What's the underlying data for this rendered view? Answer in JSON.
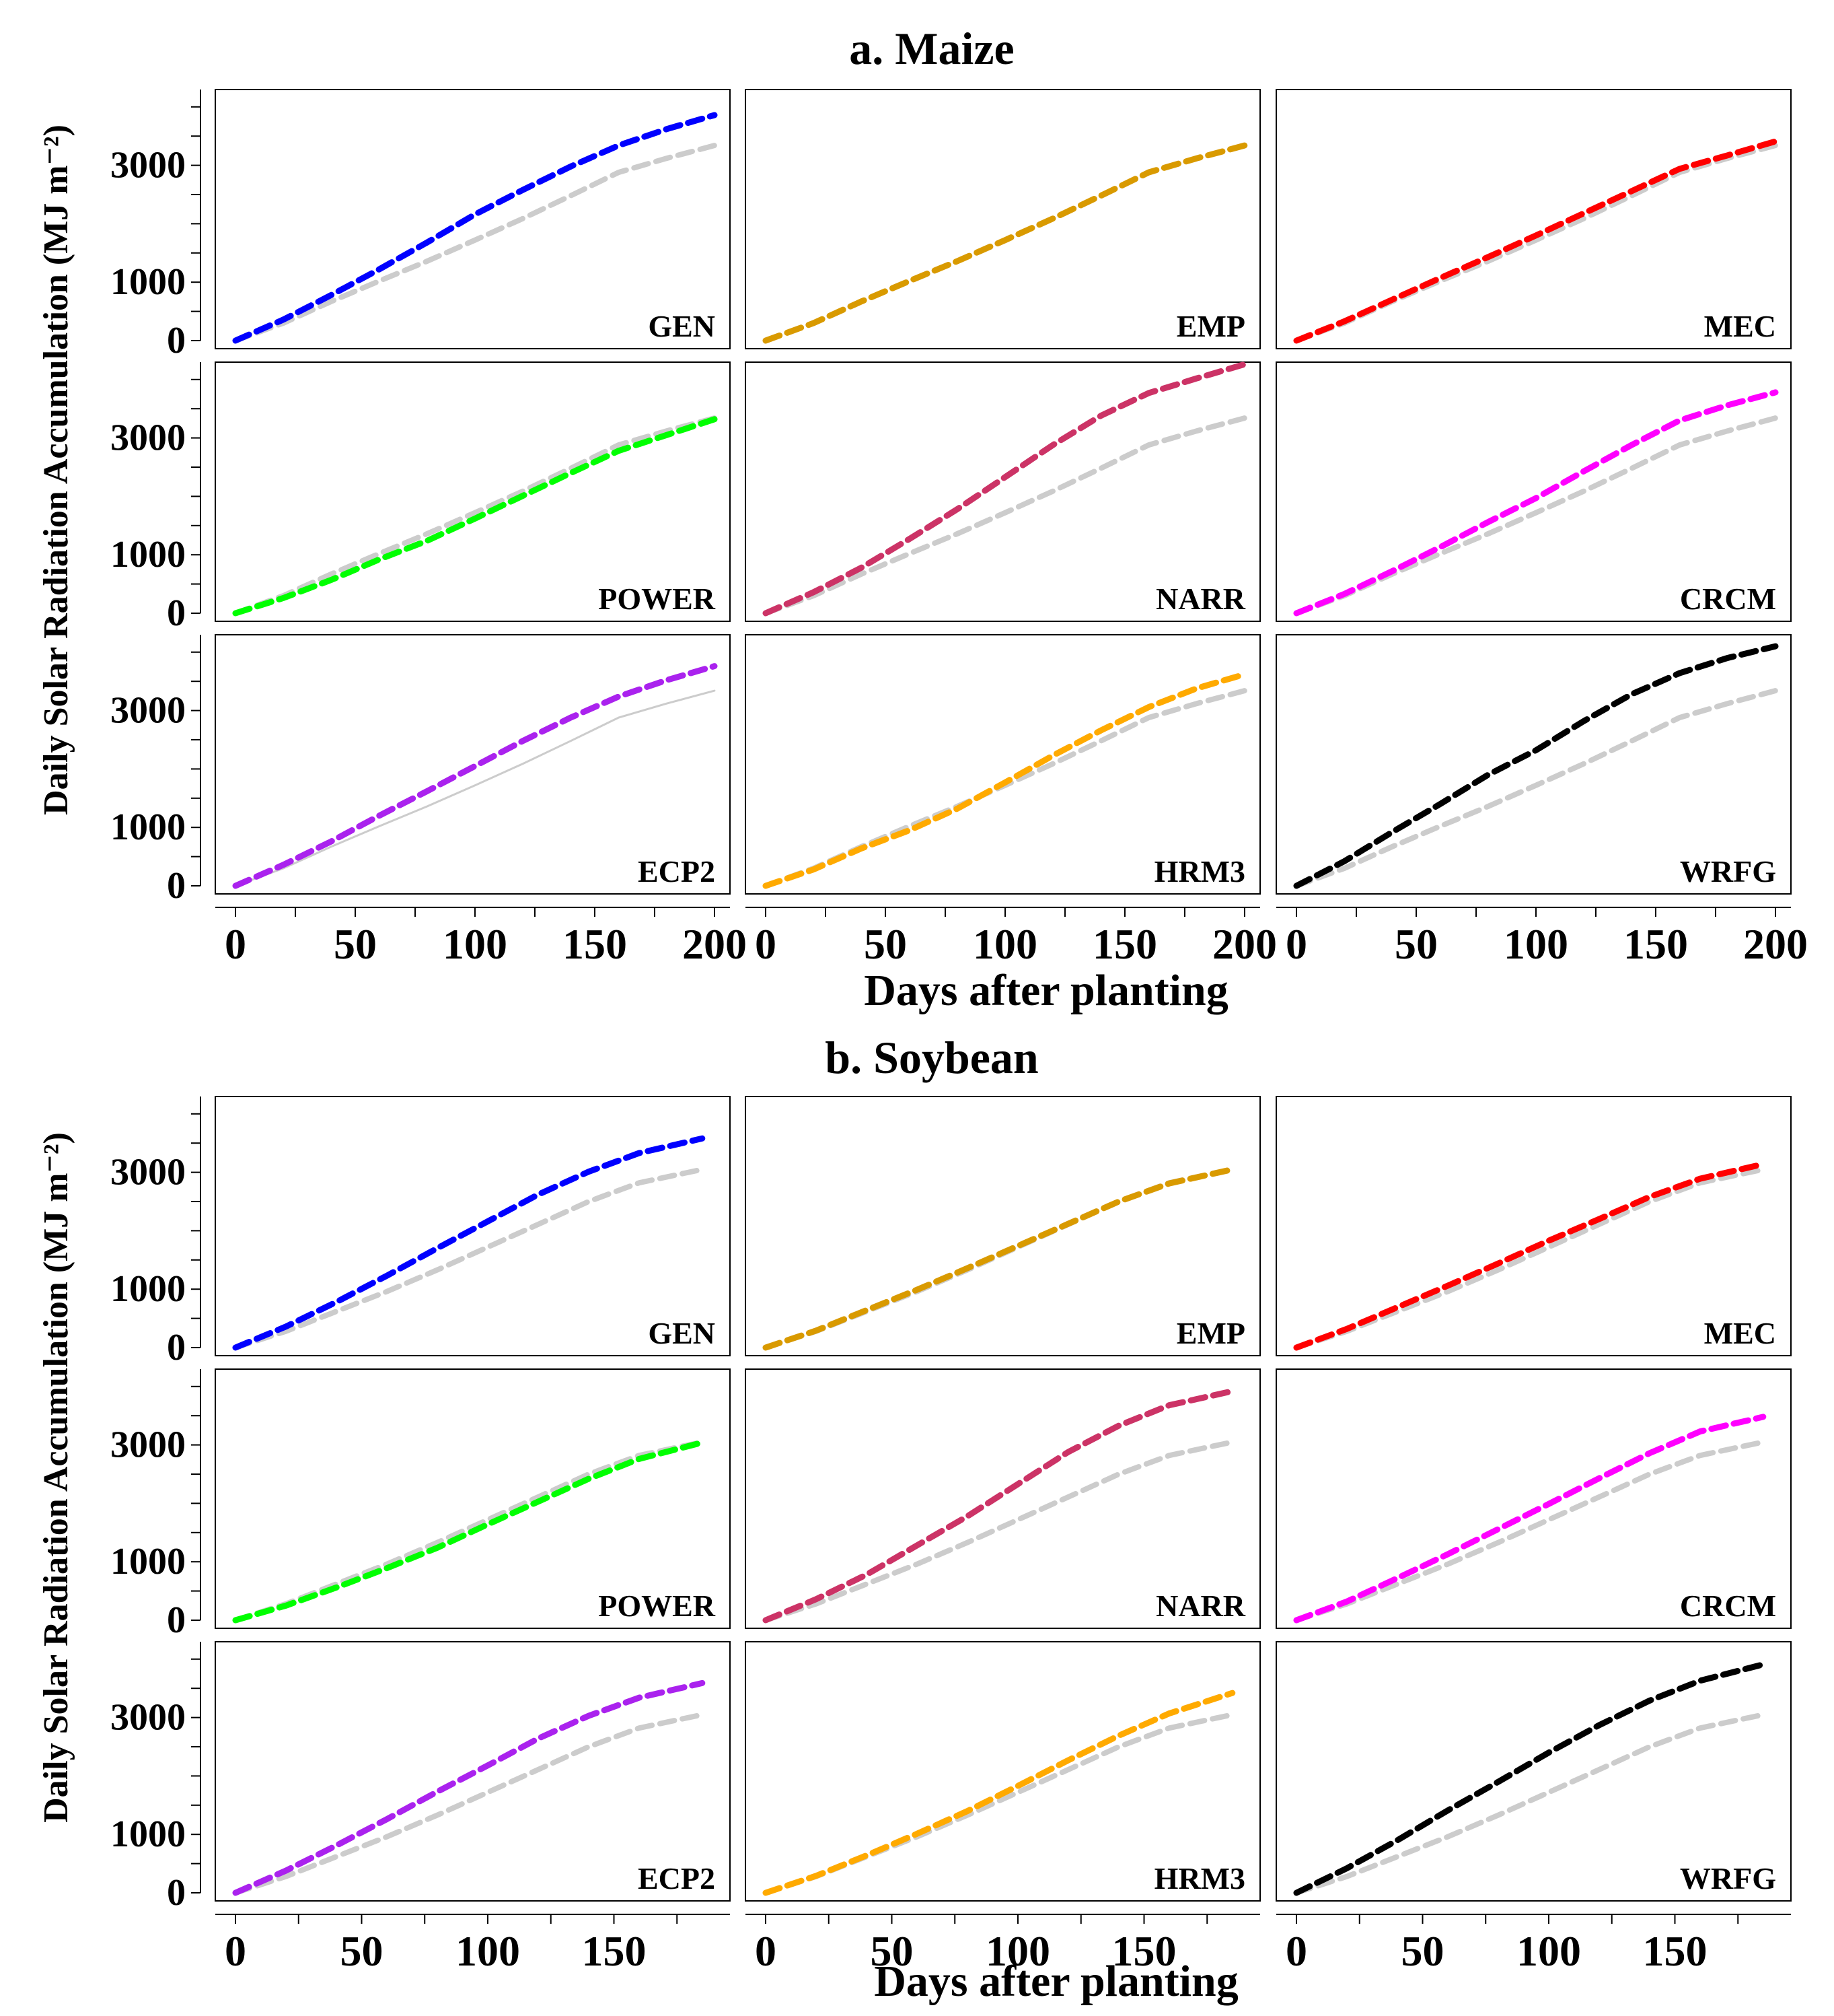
{
  "chart_data": [
    {
      "type": "line",
      "title": "a. Maize",
      "xlabel": "Days after planting",
      "ylabel": "Daily Solar Radiation Accumulation  (MJ m⁻²)",
      "xlim": [
        0,
        200
      ],
      "ylim": [
        0,
        4000
      ],
      "xticks": [
        "0",
        "50",
        "100",
        "150",
        "200"
      ],
      "yticks": [
        "0",
        "1000",
        "3000"
      ],
      "grid": false,
      "reference_series": {
        "name": "",
        "color": "#cccccc",
        "x": [
          0,
          20,
          40,
          60,
          80,
          100,
          120,
          140,
          160,
          180,
          200
        ],
        "values": [
          0,
          300,
          670,
          1020,
          1360,
          1720,
          2090,
          2480,
          2880,
          3120,
          3340
        ]
      },
      "panels": [
        {
          "label": "GEN",
          "color": "#0000ff",
          "x": [
            0,
            20,
            40,
            60,
            80,
            100,
            120,
            140,
            160,
            180,
            200
          ],
          "values": [
            0,
            360,
            780,
            1220,
            1680,
            2160,
            2580,
            2980,
            3340,
            3620,
            3860
          ]
        },
        {
          "label": "EMP",
          "color": "#d99a00",
          "x": [
            0,
            20,
            40,
            60,
            80,
            100,
            120,
            140,
            160,
            180,
            200
          ],
          "values": [
            0,
            300,
            670,
            1020,
            1360,
            1720,
            2090,
            2480,
            2880,
            3120,
            3340
          ]
        },
        {
          "label": "MEC",
          "color": "#ff0000",
          "x": [
            0,
            20,
            40,
            60,
            80,
            100,
            120,
            140,
            160,
            180,
            200
          ],
          "values": [
            0,
            330,
            700,
            1070,
            1430,
            1800,
            2180,
            2560,
            2940,
            3170,
            3410
          ]
        },
        {
          "label": "POWER",
          "color": "#00ff00",
          "x": [
            0,
            20,
            40,
            60,
            80,
            100,
            120,
            140,
            160,
            180,
            200
          ],
          "values": [
            0,
            260,
            570,
            920,
            1240,
            1620,
            2010,
            2400,
            2780,
            3050,
            3320
          ]
        },
        {
          "label": "NARR",
          "color": "#cc3366",
          "x": [
            0,
            20,
            40,
            60,
            80,
            100,
            120,
            140,
            160,
            180,
            200
          ],
          "values": [
            0,
            360,
            780,
            1270,
            1780,
            2330,
            2880,
            3380,
            3770,
            4020,
            4260
          ]
        },
        {
          "label": "CRCM",
          "color": "#ff00ff",
          "x": [
            0,
            20,
            40,
            60,
            80,
            100,
            120,
            140,
            160,
            180,
            200
          ],
          "values": [
            0,
            330,
            720,
            1130,
            1560,
            1970,
            2430,
            2880,
            3300,
            3560,
            3780
          ]
        },
        {
          "label": "ECP2",
          "color": "#aa22ee",
          "x": [
            0,
            20,
            40,
            60,
            80,
            100,
            120,
            140,
            160,
            180,
            200
          ],
          "values": [
            0,
            360,
            760,
            1200,
            1620,
            2050,
            2480,
            2880,
            3240,
            3520,
            3760
          ]
        },
        {
          "label": "HRM3",
          "color": "#ffaa00",
          "x": [
            0,
            20,
            40,
            60,
            80,
            100,
            120,
            140,
            160,
            180,
            200
          ],
          "values": [
            0,
            280,
            640,
            950,
            1320,
            1770,
            2230,
            2660,
            3060,
            3380,
            3620
          ]
        },
        {
          "label": "WRFG",
          "color": "#000000",
          "x": [
            0,
            20,
            40,
            60,
            80,
            100,
            120,
            140,
            160,
            180,
            200
          ],
          "values": [
            0,
            420,
            920,
            1400,
            1900,
            2320,
            2820,
            3280,
            3640,
            3900,
            4100
          ]
        }
      ]
    },
    {
      "type": "line",
      "title": "b. Soybean",
      "xlabel": "Days after planting",
      "ylabel": "Daily Solar Radiation Accumulation  (MJ m⁻²)",
      "xlim": [
        0,
        190
      ],
      "ylim": [
        0,
        4000
      ],
      "xticks": [
        "0",
        "50",
        "100",
        "150"
      ],
      "yticks": [
        "0",
        "1000",
        "3000"
      ],
      "grid": false,
      "reference_series": {
        "name": "",
        "color": "#cccccc",
        "x": [
          0,
          20,
          40,
          60,
          80,
          100,
          120,
          140,
          160,
          185
        ],
        "values": [
          0,
          280,
          620,
          960,
          1330,
          1720,
          2110,
          2500,
          2820,
          3050
        ]
      },
      "panels": [
        {
          "label": "GEN",
          "color": "#0000ff",
          "x": [
            0,
            20,
            40,
            60,
            80,
            100,
            120,
            140,
            160,
            185
          ],
          "values": [
            0,
            360,
            780,
            1230,
            1700,
            2160,
            2620,
            3010,
            3330,
            3580
          ]
        },
        {
          "label": "EMP",
          "color": "#d99a00",
          "x": [
            0,
            20,
            40,
            60,
            80,
            100,
            120,
            140,
            160,
            185
          ],
          "values": [
            0,
            290,
            640,
            990,
            1360,
            1740,
            2120,
            2500,
            2810,
            3050
          ]
        },
        {
          "label": "MEC",
          "color": "#ff0000",
          "x": [
            0,
            20,
            40,
            60,
            80,
            100,
            120,
            140,
            160,
            185
          ],
          "values": [
            0,
            320,
            690,
            1060,
            1440,
            1830,
            2200,
            2580,
            2890,
            3140
          ]
        },
        {
          "label": "POWER",
          "color": "#00ff00",
          "x": [
            0,
            20,
            40,
            60,
            80,
            100,
            120,
            140,
            160,
            185
          ],
          "values": [
            0,
            250,
            560,
            890,
            1240,
            1640,
            2030,
            2420,
            2760,
            3040
          ]
        },
        {
          "label": "NARR",
          "color": "#cc3366",
          "x": [
            0,
            20,
            40,
            60,
            80,
            100,
            120,
            140,
            160,
            185
          ],
          "values": [
            0,
            360,
            780,
            1280,
            1780,
            2330,
            2880,
            3330,
            3680,
            3920
          ]
        },
        {
          "label": "CRCM",
          "color": "#ff00ff",
          "x": [
            0,
            20,
            40,
            60,
            80,
            100,
            120,
            140,
            160,
            185
          ],
          "values": [
            0,
            320,
            720,
            1130,
            1560,
            1990,
            2430,
            2860,
            3230,
            3480
          ]
        },
        {
          "label": "ECP2",
          "color": "#aa22ee",
          "x": [
            0,
            20,
            40,
            60,
            80,
            100,
            120,
            140,
            160,
            185
          ],
          "values": [
            0,
            380,
            810,
            1260,
            1730,
            2180,
            2640,
            3030,
            3340,
            3590
          ]
        },
        {
          "label": "HRM3",
          "color": "#ffaa00",
          "x": [
            0,
            20,
            40,
            60,
            80,
            100,
            120,
            140,
            160,
            185
          ],
          "values": [
            0,
            290,
            640,
            1010,
            1400,
            1830,
            2270,
            2690,
            3070,
            3420
          ]
        },
        {
          "label": "WRFG",
          "color": "#000000",
          "x": [
            0,
            20,
            40,
            60,
            80,
            100,
            120,
            140,
            160,
            185
          ],
          "values": [
            0,
            420,
            900,
            1410,
            1900,
            2400,
            2870,
            3290,
            3630,
            3910
          ]
        }
      ]
    }
  ]
}
